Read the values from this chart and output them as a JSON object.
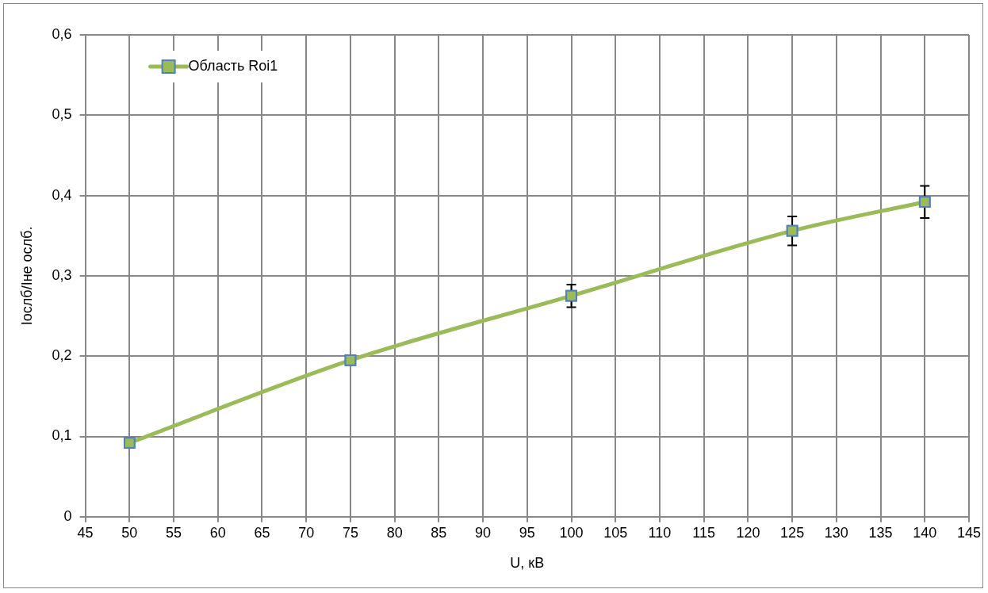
{
  "chart_data": {
    "type": "line",
    "xlabel": "U, кВ",
    "ylabel": "Iослб/Iне ослб.",
    "x": [
      50,
      75,
      100,
      125,
      140
    ],
    "series": [
      {
        "name": "Область Roi1",
        "color": "#9bbb59",
        "values": [
          0.092,
          0.195,
          0.275,
          0.356,
          0.392
        ],
        "errors": [
          null,
          null,
          0.014,
          0.018,
          0.02
        ]
      }
    ],
    "xlim": [
      45,
      145
    ],
    "xticks": [
      45,
      50,
      55,
      60,
      65,
      70,
      75,
      80,
      85,
      90,
      95,
      100,
      105,
      110,
      115,
      120,
      125,
      130,
      135,
      140,
      145
    ],
    "ylim": [
      0,
      0.6
    ],
    "yticks": [
      {
        "value": 0,
        "label": "0"
      },
      {
        "value": 0.1,
        "label": "0,1"
      },
      {
        "value": 0.2,
        "label": "0,2"
      },
      {
        "value": 0.3,
        "label": "0,3"
      },
      {
        "value": 0.4,
        "label": "0,4"
      },
      {
        "value": 0.5,
        "label": "0,5"
      },
      {
        "value": 0.6,
        "label": "0,6"
      }
    ],
    "grid": true,
    "legend": "top left",
    "marker": "square",
    "line_style": "solid"
  }
}
